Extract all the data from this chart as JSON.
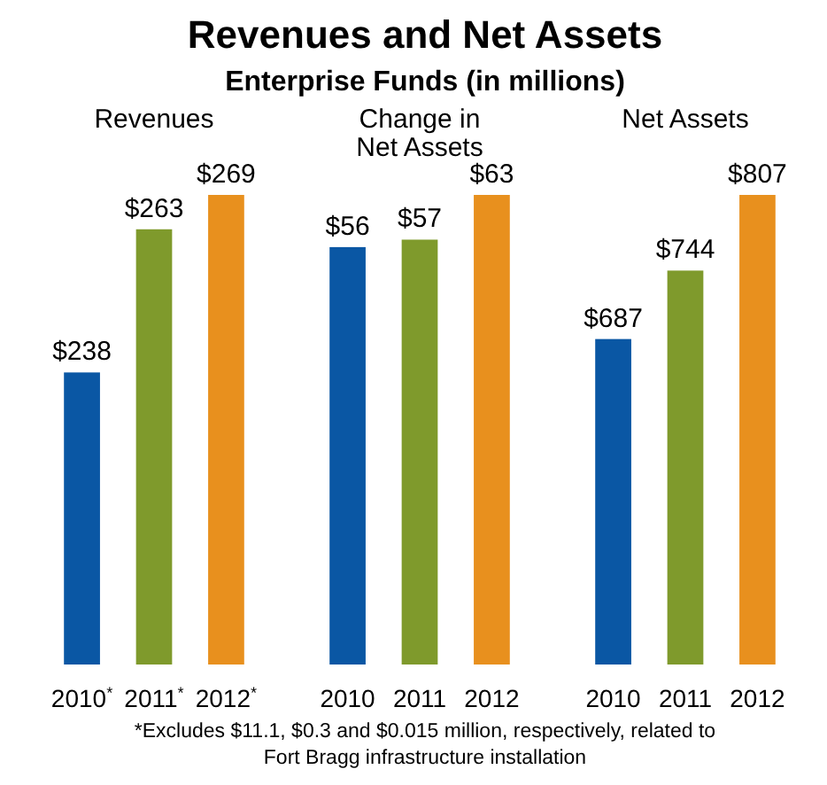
{
  "chart_data": [
    {
      "type": "other",
      "title": "Revenues and Net Assets",
      "subtitle": "Enterprise Funds (in millions)",
      "annotations": [
        "*Excludes $11.1, $0.3 and $0.015 million, respectively, related to Fort Bragg infrastructure installation"
      ]
    },
    {
      "type": "bar",
      "title": "Revenues",
      "categories": [
        "2010$^{*}$",
        "2011$^{*}$",
        "2012$^{*}$"
      ],
      "values": [
        238,
        263,
        269
      ],
      "colors": [
        "#0a57a4",
        "#7f9a2c",
        "#e8901e"
      ],
      "value_labels": [
        "$238",
        "$263",
        "$269"
      ],
      "ylim": [
        187,
        269
      ],
      "tick_labels": "x"
    },
    {
      "type": "bar",
      "title": "Change in\nNet Assets",
      "categories": [
        "2010",
        "2011",
        "2012"
      ],
      "values": [
        56,
        57,
        63
      ],
      "colors": [
        "#0a57a4",
        "#7f9a2c",
        "#e8901e"
      ],
      "value_labels": [
        "$56",
        "$57",
        "$63"
      ],
      "ylim": [
        0,
        63
      ],
      "tick_labels": "x"
    },
    {
      "type": "bar",
      "title": "Net Assets",
      "categories": [
        "2010",
        "2011",
        "2012"
      ],
      "values": [
        687,
        744,
        807
      ],
      "colors": [
        "#0a57a4",
        "#7f9a2c",
        "#e8901e"
      ],
      "value_labels": [
        "$687",
        "$744",
        "$807"
      ],
      "ylim": [
        416,
        807
      ],
      "tick_labels": "x"
    }
  ]
}
